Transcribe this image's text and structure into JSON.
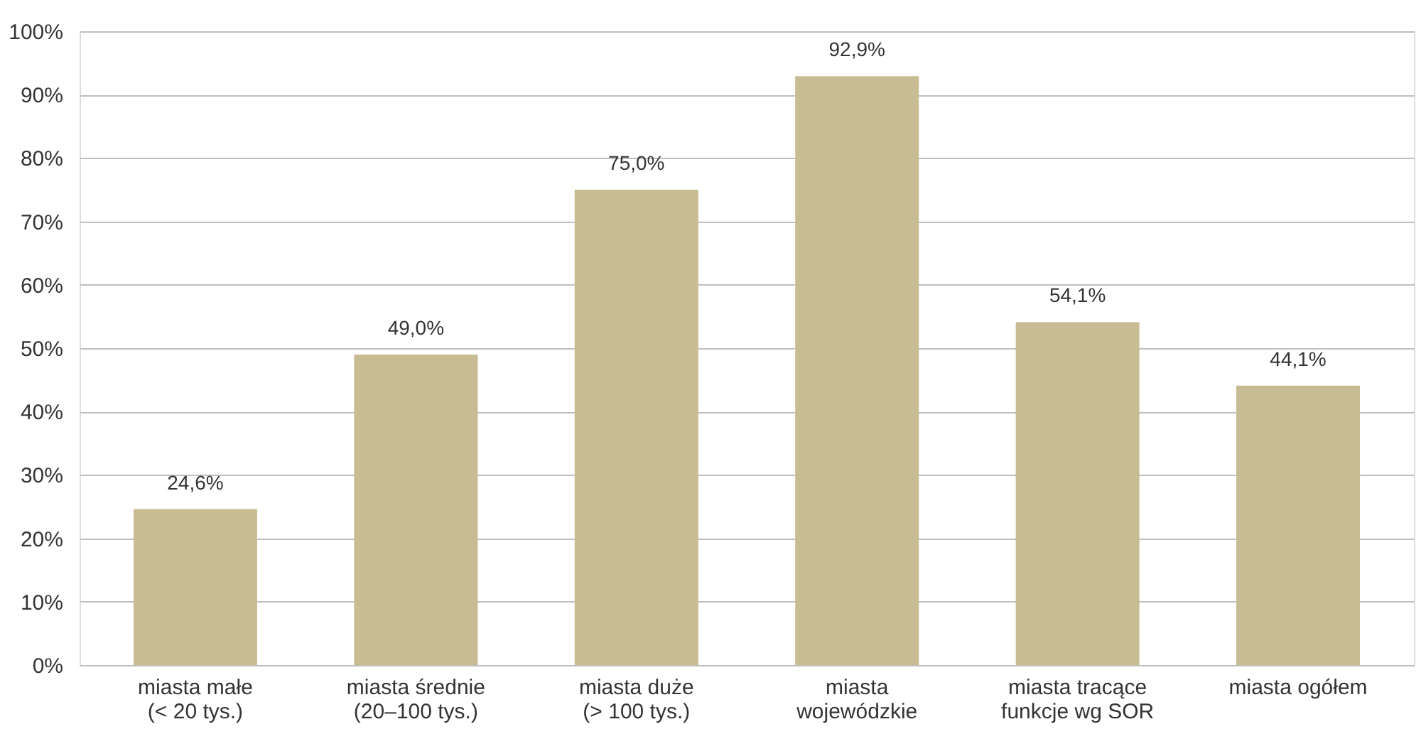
{
  "chart_data": {
    "type": "bar",
    "categories": [
      "miasta małe\n(< 20 tys.)",
      "miasta średnie\n(20–100 tys.)",
      "miasta duże\n(> 100 tys.)",
      "miasta\nwojewódzkie",
      "miasta tracące\nfunkcje wg SOR",
      "miasta ogółem"
    ],
    "values": [
      24.6,
      49.0,
      75.0,
      92.9,
      54.1,
      44.1
    ],
    "value_labels": [
      "24,6%",
      "49,0%",
      "75,0%",
      "92,9%",
      "54,1%",
      "44,1%"
    ],
    "color": "#c8bc93",
    "ylim": [
      0,
      100
    ],
    "yticks": [
      {
        "value": 0,
        "label": "0%"
      },
      {
        "value": 10,
        "label": "10%"
      },
      {
        "value": 20,
        "label": "20%"
      },
      {
        "value": 30,
        "label": "30%"
      },
      {
        "value": 40,
        "label": "40%"
      },
      {
        "value": 50,
        "label": "50%"
      },
      {
        "value": 60,
        "label": "60%"
      },
      {
        "value": 70,
        "label": "70%"
      },
      {
        "value": 80,
        "label": "80%"
      },
      {
        "value": 90,
        "label": "90%"
      },
      {
        "value": 100,
        "label": "100%"
      }
    ],
    "grid": "y"
  }
}
